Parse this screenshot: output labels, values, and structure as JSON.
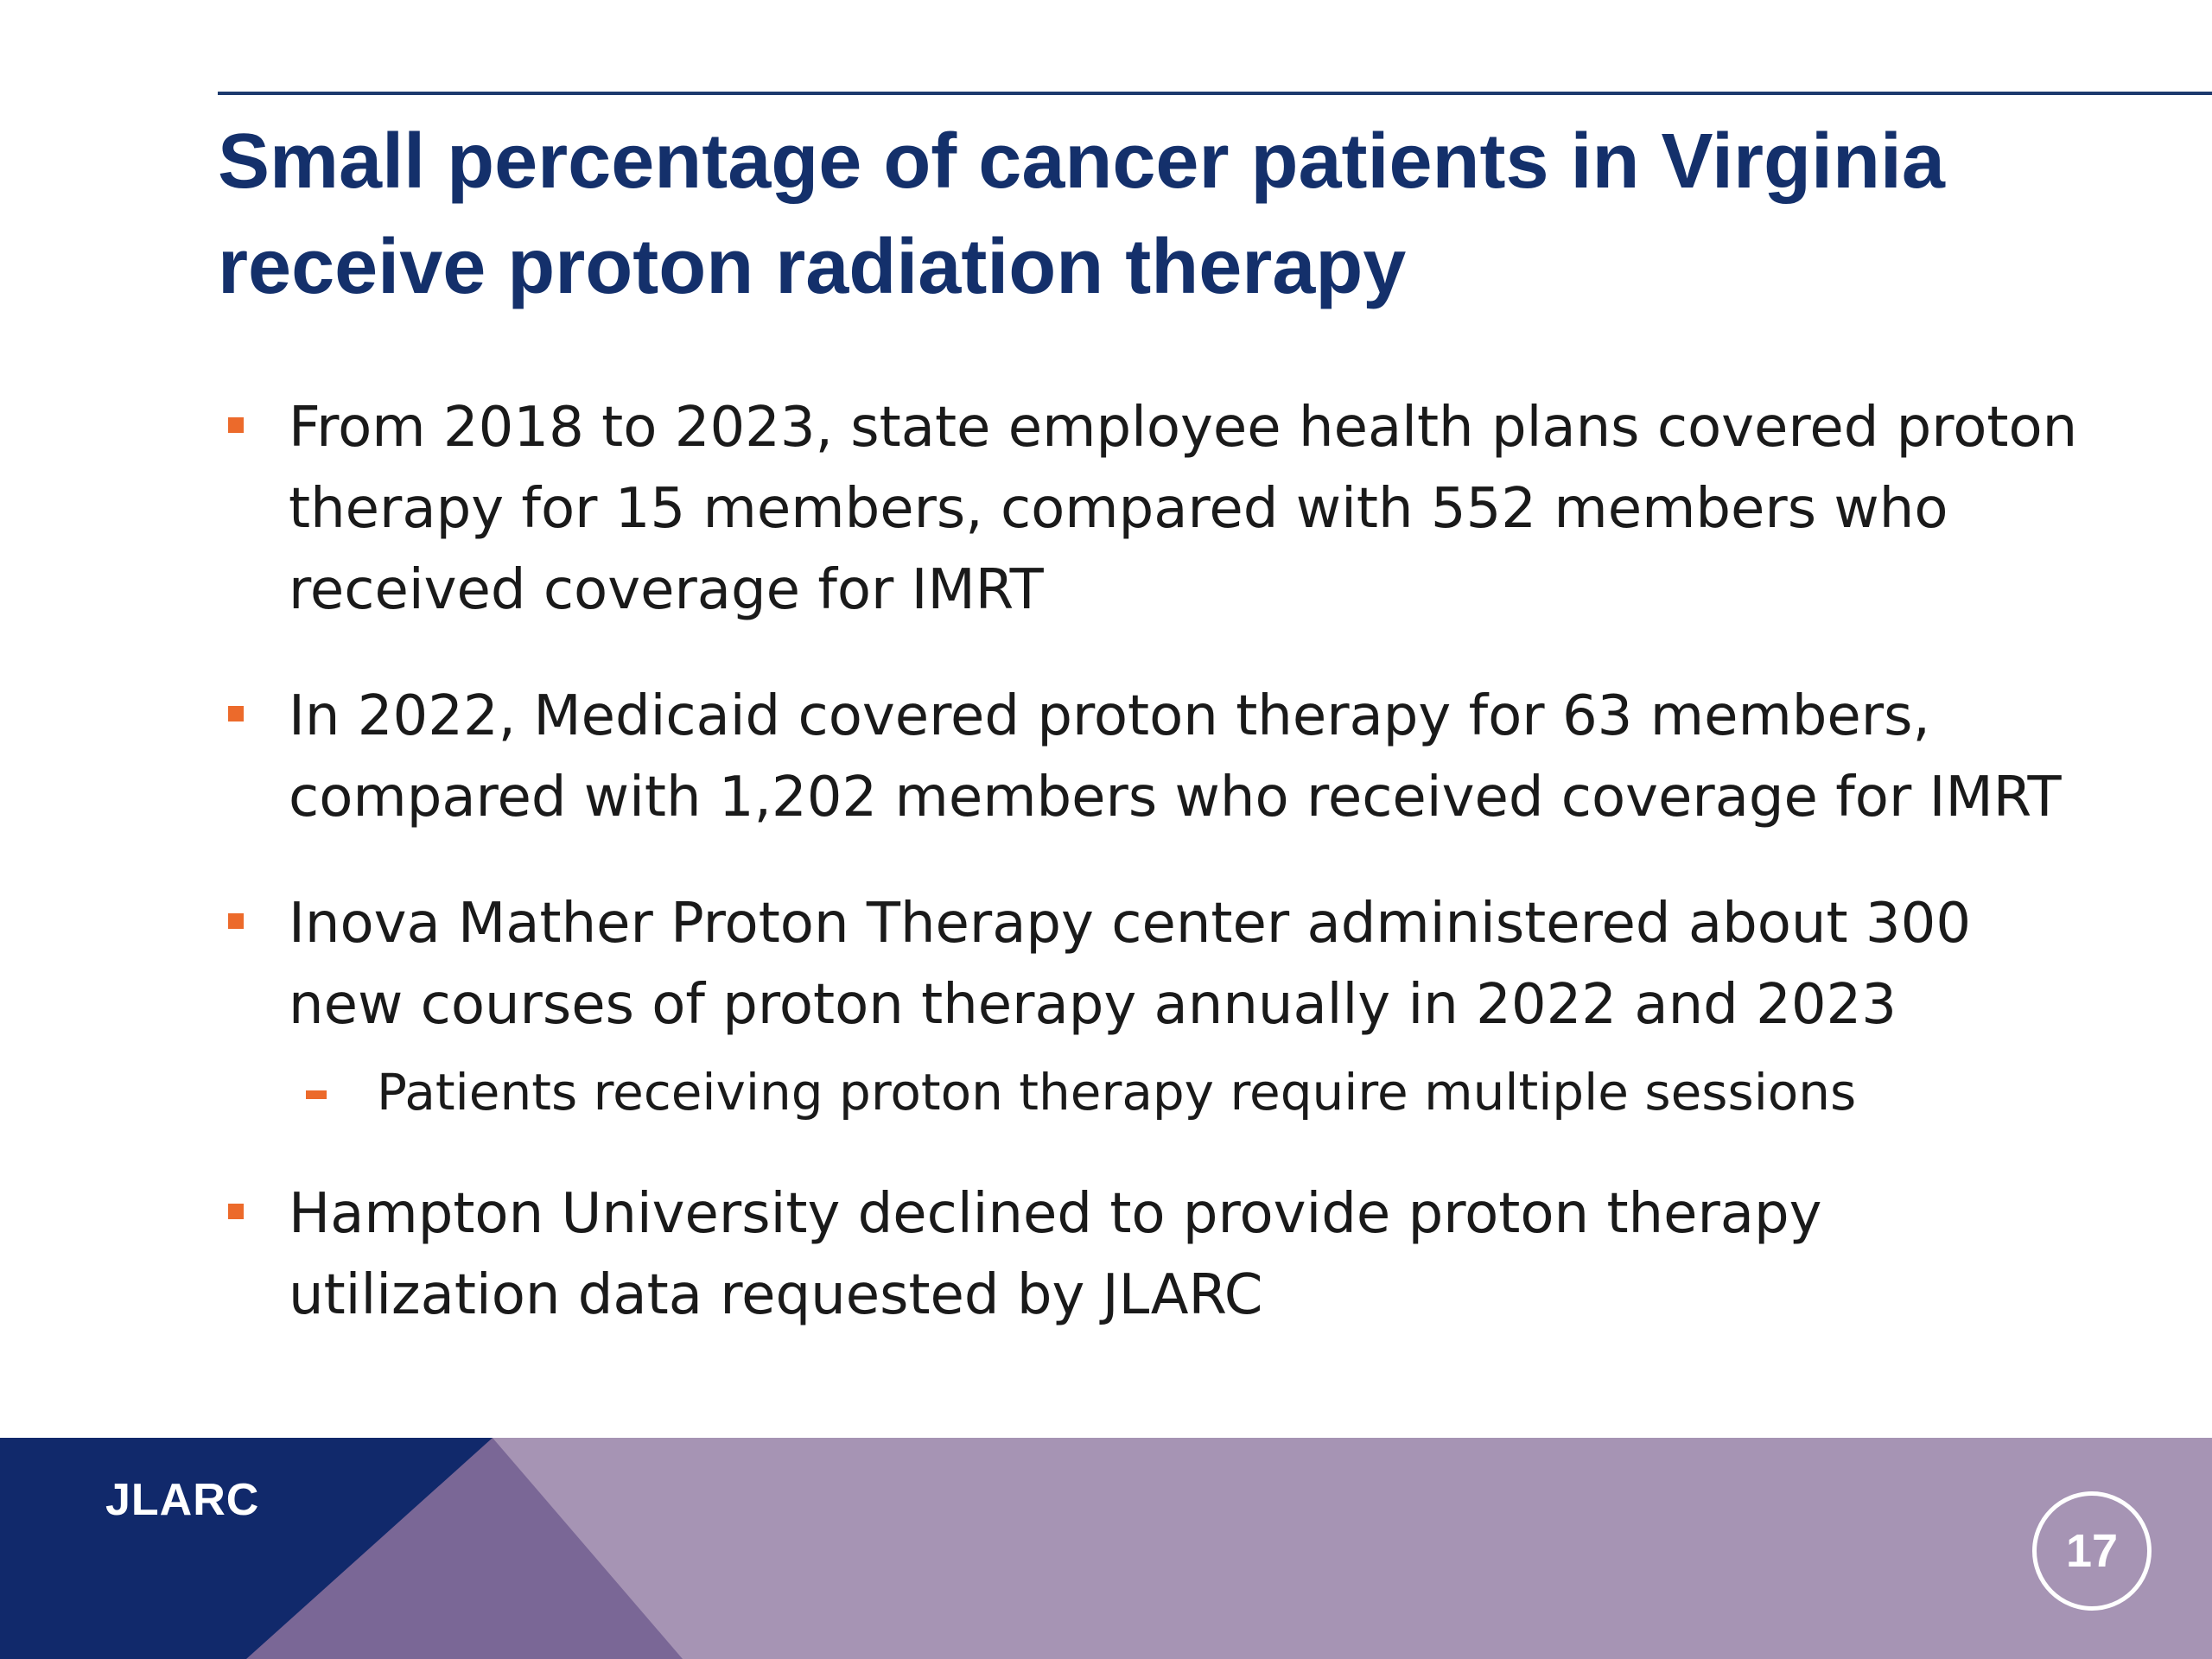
{
  "slide": {
    "title": "Small percentage of cancer patients in Virginia receive proton radiation therapy",
    "bullets": [
      {
        "text": "From 2018 to 2023, state employee health plans covered proton therapy for 15 members, compared with 552 members who received coverage for IMRT"
      },
      {
        "text": "In 2022, Medicaid covered proton therapy for 63 members, compared with 1,202 members who received coverage for IMRT"
      },
      {
        "text": "Inova Mather Proton Therapy center administered about 300 new courses of proton therapy annually in 2022 and 2023",
        "sub_bullets": [
          "Patients receiving proton therapy require multiple sessions"
        ]
      },
      {
        "text": "Hampton University declined to provide proton therapy utilization data requested by JLARC"
      }
    ]
  },
  "footer": {
    "brand": "JLARC",
    "page_number": "17",
    "colors": {
      "navy": "#11296b",
      "purple_dark": "#7a6796",
      "purple_light": "#a694b4"
    }
  },
  "colors": {
    "title": "#14306b",
    "bullet_marker": "#ec6a2b",
    "rule": "#1c3a6e"
  }
}
